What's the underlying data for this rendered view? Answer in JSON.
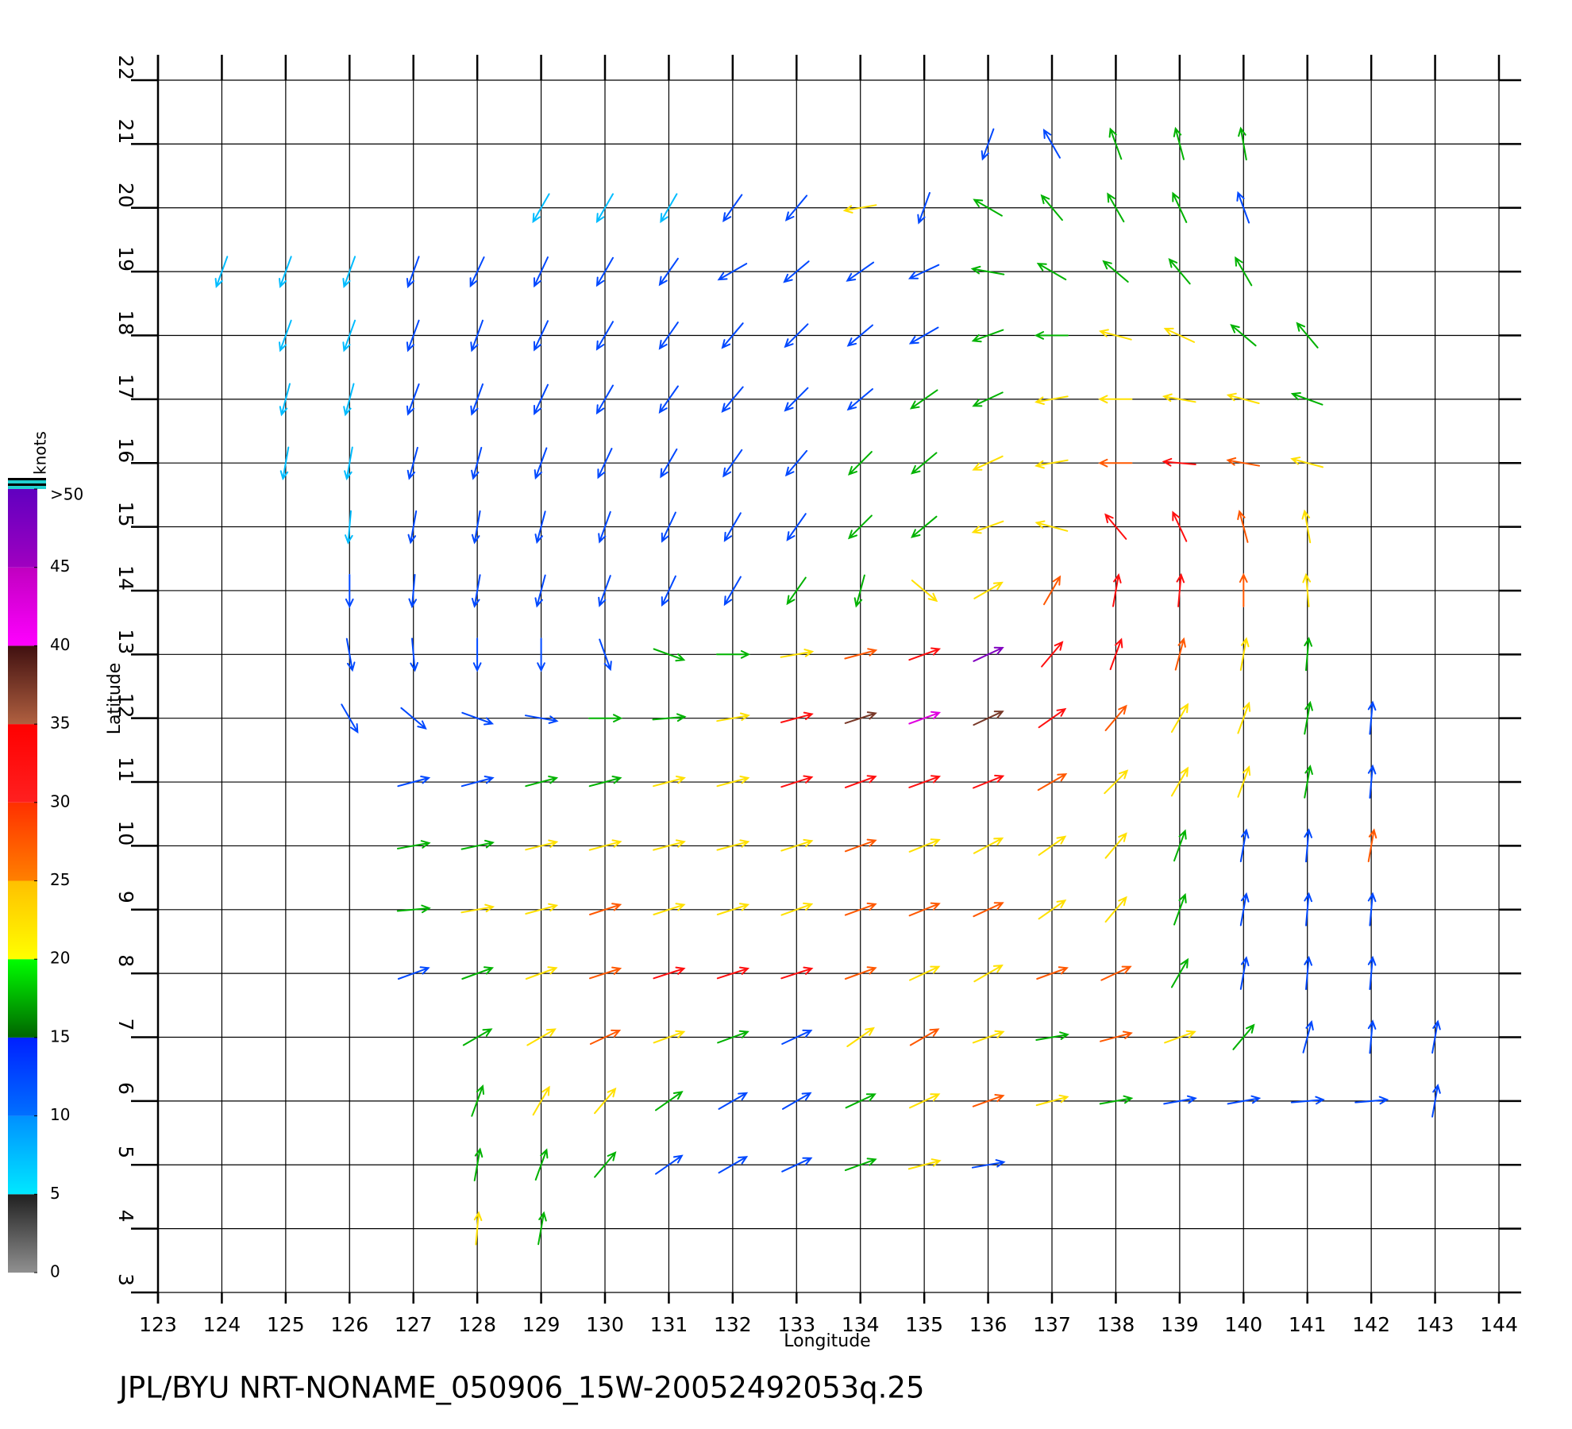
{
  "chart_data": {
    "type": "quiver",
    "footer": "JPL/BYU  NRT-NONAME_050906_15W-20052492053q.25",
    "x_label": "Longitude",
    "y_label": "Latitude",
    "xlim": [
      123,
      144
    ],
    "ylim": [
      3,
      22
    ],
    "xticks": [
      123,
      124,
      125,
      126,
      127,
      128,
      129,
      130,
      131,
      132,
      133,
      134,
      135,
      136,
      137,
      138,
      139,
      140,
      141,
      142,
      143,
      144
    ],
    "yticks": [
      3,
      4,
      5,
      6,
      7,
      8,
      9,
      10,
      11,
      12,
      13,
      14,
      15,
      16,
      17,
      18,
      19,
      20,
      21,
      22
    ],
    "grid": true,
    "colorbar": {
      "label": "knots",
      "lim": [
        0,
        50
      ],
      "ticks": [
        0,
        5,
        10,
        15,
        20,
        25,
        30,
        35,
        40,
        45,
        {
          "value": 50,
          "label": ">50"
        }
      ],
      "colors": [
        [
          "#909090",
          "#202020"
        ],
        [
          "#00e8ff",
          "#0090ff"
        ],
        [
          "#0070ff",
          "#0020ff"
        ],
        [
          "#006400",
          "#00ff00"
        ],
        [
          "#ffff00",
          "#ffc000"
        ],
        [
          "#ff8000",
          "#ff3000"
        ],
        [
          "#ff2020",
          "#ff0000"
        ],
        [
          "#b06040",
          "#401010"
        ],
        [
          "#ff00ff",
          "#c000c0"
        ],
        [
          "#a000c0",
          "#6000c0"
        ]
      ]
    },
    "rows": [
      {
        "lat": 21,
        "lon": [
          136,
          137,
          138,
          139,
          140
        ],
        "speed": [
          12,
          13,
          17,
          16,
          18
        ],
        "direction": [
          200,
          330,
          340,
          345,
          350
        ]
      },
      {
        "lat": 20,
        "lon": [
          129,
          130,
          131,
          132,
          133,
          134,
          135,
          136,
          137,
          138,
          139,
          140
        ],
        "speed": [
          7,
          8,
          9,
          10,
          12,
          22,
          13,
          16,
          17,
          16,
          17,
          14
        ],
        "direction": [
          210,
          210,
          210,
          215,
          220,
          260,
          200,
          300,
          320,
          330,
          335,
          340
        ]
      },
      {
        "lat": 19,
        "lon": [
          124,
          125,
          126,
          127,
          128,
          129,
          130,
          131,
          132,
          133,
          134,
          135,
          136,
          137,
          138,
          139,
          140
        ],
        "speed": [
          7,
          8,
          9,
          10,
          10,
          10,
          11,
          11,
          14,
          12,
          13,
          14,
          17,
          18,
          19,
          18,
          15
        ],
        "direction": [
          200,
          200,
          200,
          200,
          205,
          205,
          210,
          215,
          240,
          230,
          235,
          245,
          280,
          300,
          310,
          320,
          330
        ]
      },
      {
        "lat": 18,
        "lon": [
          125,
          126,
          127,
          128,
          129,
          130,
          131,
          132,
          133,
          134,
          135,
          136,
          137,
          138,
          139,
          140,
          141
        ],
        "speed": [
          8,
          9,
          10,
          10,
          11,
          11,
          12,
          13,
          12,
          13,
          14,
          16,
          18,
          21,
          21,
          18,
          15
        ],
        "direction": [
          200,
          200,
          200,
          200,
          205,
          210,
          215,
          220,
          225,
          230,
          240,
          250,
          270,
          285,
          295,
          310,
          320
        ]
      },
      {
        "lat": 17,
        "lon": [
          125,
          126,
          127,
          128,
          129,
          130,
          131,
          132,
          133,
          134,
          135,
          136,
          137,
          138,
          139,
          140,
          141
        ],
        "speed": [
          8,
          9,
          10,
          11,
          11,
          12,
          12,
          13,
          13,
          14,
          15,
          18,
          21,
          22,
          24,
          22,
          18
        ],
        "direction": [
          195,
          195,
          200,
          200,
          205,
          210,
          215,
          220,
          225,
          230,
          235,
          245,
          260,
          270,
          280,
          285,
          290
        ]
      },
      {
        "lat": 16,
        "lon": [
          125,
          126,
          127,
          128,
          129,
          130,
          131,
          132,
          133,
          134,
          135,
          136,
          137,
          138,
          139,
          140,
          141
        ],
        "speed": [
          8,
          9,
          10,
          11,
          12,
          12,
          13,
          13,
          14,
          16,
          19,
          22,
          24,
          27,
          30,
          27,
          21
        ],
        "direction": [
          190,
          190,
          195,
          195,
          200,
          205,
          210,
          215,
          220,
          225,
          230,
          245,
          260,
          270,
          275,
          280,
          285
        ]
      },
      {
        "lat": 15,
        "lon": [
          126,
          127,
          128,
          129,
          130,
          131,
          132,
          133,
          134,
          135,
          136,
          137,
          138,
          139,
          140,
          141
        ],
        "speed": [
          9,
          10,
          11,
          12,
          12,
          13,
          13,
          14,
          16,
          19,
          22,
          24,
          30,
          31,
          28,
          24
        ],
        "direction": [
          185,
          190,
          190,
          195,
          200,
          205,
          210,
          215,
          225,
          230,
          250,
          285,
          320,
          335,
          345,
          350
        ]
      },
      {
        "lat": 14,
        "lon": [
          126,
          127,
          128,
          129,
          130,
          131,
          132,
          133,
          134,
          135,
          136,
          137,
          138,
          139,
          140,
          141
        ],
        "speed": [
          10,
          11,
          12,
          12,
          12,
          13,
          14,
          15,
          17,
          21,
          20,
          25,
          32,
          32,
          28,
          22
        ],
        "direction": [
          180,
          185,
          190,
          195,
          200,
          205,
          210,
          215,
          195,
          130,
          60,
          30,
          10,
          5,
          0,
          355
        ]
      },
      {
        "lat": 13,
        "lon": [
          126,
          127,
          128,
          129,
          130,
          131,
          132,
          133,
          134,
          135,
          136,
          137,
          138,
          139,
          140,
          141
        ],
        "speed": [
          11,
          12,
          12,
          13,
          14,
          15,
          17,
          20,
          28,
          33,
          45,
          32,
          30,
          27,
          24,
          18
        ],
        "direction": [
          170,
          175,
          180,
          180,
          160,
          110,
          90,
          80,
          75,
          70,
          65,
          40,
          20,
          15,
          10,
          5
        ]
      },
      {
        "lat": 12,
        "lon": [
          126,
          127,
          128,
          129,
          130,
          131,
          132,
          133,
          134,
          135,
          136,
          137,
          138,
          139,
          140,
          141,
          142
        ],
        "speed": [
          10,
          11,
          12,
          13,
          15,
          17,
          24,
          30,
          35,
          42,
          36,
          30,
          27,
          24,
          22,
          18,
          13
        ],
        "direction": [
          150,
          130,
          110,
          100,
          90,
          85,
          80,
          75,
          72,
          70,
          65,
          55,
          40,
          30,
          20,
          10,
          5
        ]
      },
      {
        "lat": 11,
        "lon": [
          127,
          128,
          129,
          130,
          131,
          132,
          133,
          134,
          135,
          136,
          137,
          138,
          139,
          140,
          141,
          142
        ],
        "speed": [
          12,
          14,
          16,
          18,
          20,
          24,
          30,
          32,
          33,
          30,
          27,
          24,
          22,
          20,
          15,
          13
        ],
        "direction": [
          75,
          75,
          75,
          75,
          75,
          75,
          72,
          70,
          70,
          68,
          60,
          45,
          30,
          20,
          10,
          5
        ]
      },
      {
        "lat": 10,
        "lon": [
          127,
          128,
          129,
          130,
          131,
          132,
          133,
          134,
          135,
          136,
          137,
          138,
          139,
          140,
          141,
          142
        ],
        "speed": [
          16,
          18,
          20,
          22,
          22,
          23,
          24,
          25,
          24,
          22,
          22,
          21,
          18,
          14,
          13,
          25
        ],
        "direction": [
          80,
          78,
          76,
          75,
          75,
          75,
          72,
          70,
          68,
          62,
          55,
          40,
          20,
          10,
          5,
          10
        ]
      },
      {
        "lat": 9,
        "lon": [
          127,
          128,
          129,
          130,
          131,
          132,
          133,
          134,
          135,
          136,
          137,
          138,
          139,
          140,
          141,
          142
        ],
        "speed": [
          17,
          20,
          24,
          28,
          22,
          20,
          23,
          26,
          27,
          25,
          22,
          20,
          17,
          14,
          13,
          12
        ],
        "direction": [
          85,
          80,
          75,
          72,
          72,
          72,
          70,
          70,
          68,
          65,
          55,
          40,
          20,
          10,
          5,
          5
        ]
      },
      {
        "lat": 8,
        "lon": [
          127,
          128,
          129,
          130,
          131,
          132,
          133,
          134,
          135,
          136,
          137,
          138,
          139,
          140,
          141,
          142
        ],
        "speed": [
          13,
          16,
          22,
          25,
          30,
          31,
          30,
          27,
          23,
          22,
          28,
          25,
          18,
          14,
          13,
          12
        ],
        "direction": [
          70,
          70,
          70,
          72,
          72,
          72,
          72,
          70,
          65,
          60,
          70,
          65,
          30,
          10,
          5,
          5
        ]
      },
      {
        "lat": 7,
        "lon": [
          128,
          129,
          130,
          131,
          132,
          133,
          134,
          135,
          136,
          137,
          138,
          139,
          140,
          141,
          142,
          143
        ],
        "speed": [
          17,
          22,
          27,
          20,
          16,
          14,
          21,
          29,
          24,
          18,
          28,
          22,
          16,
          14,
          13,
          12
        ],
        "direction": [
          60,
          60,
          65,
          70,
          70,
          65,
          55,
          60,
          70,
          80,
          75,
          70,
          40,
          15,
          5,
          10
        ]
      },
      {
        "lat": 6,
        "lon": [
          128,
          129,
          130,
          131,
          132,
          133,
          134,
          135,
          136,
          137,
          138,
          139,
          140,
          141,
          142,
          143
        ],
        "speed": [
          18,
          20,
          22,
          16,
          13,
          13,
          18,
          24,
          28,
          22,
          18,
          14,
          13,
          13,
          12,
          11
        ],
        "direction": [
          20,
          30,
          40,
          55,
          60,
          60,
          65,
          65,
          70,
          75,
          80,
          80,
          80,
          85,
          85,
          10
        ]
      },
      {
        "lat": 5,
        "lon": [
          128,
          129,
          130,
          131,
          132,
          133,
          134,
          135,
          136
        ],
        "speed": [
          18,
          17,
          15,
          13,
          13,
          13,
          16,
          20,
          14
        ],
        "direction": [
          10,
          20,
          40,
          55,
          60,
          65,
          70,
          75,
          80
        ]
      },
      {
        "lat": 4,
        "lon": [
          128,
          129
        ],
        "speed": [
          21,
          17
        ],
        "direction": [
          5,
          10
        ]
      }
    ]
  }
}
